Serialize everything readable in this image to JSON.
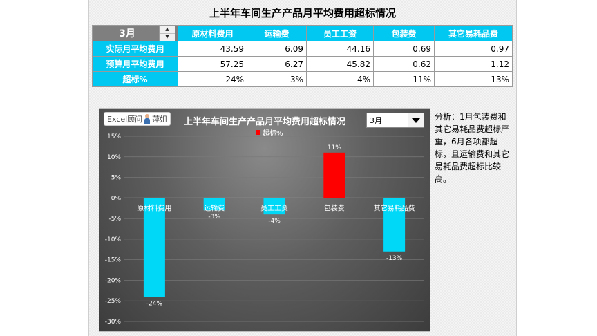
{
  "page": {
    "title": "上半年车间生产产品月平均费用超标情况"
  },
  "table": {
    "month": "3月",
    "headers": [
      "原材料费用",
      "运输费",
      "员工工资",
      "包装费",
      "其它易耗品费"
    ],
    "rows": [
      {
        "label": "实际月平均费用",
        "values": [
          "43.59",
          "6.09",
          "44.16",
          "0.69",
          "0.97"
        ]
      },
      {
        "label": "预算月平均费用",
        "values": [
          "57.25",
          "6.27",
          "45.82",
          "0.62",
          "1.12"
        ]
      },
      {
        "label": "超标%",
        "values": [
          "-24%",
          "-3%",
          "-4%",
          "11%",
          "-13%"
        ]
      }
    ]
  },
  "chart": {
    "badge_text": "Excel顾问",
    "badge_name": "萍姐",
    "dropdown_value": "3月"
  },
  "analysis": "分析：1月包装费和其它易耗品费超标严重，6月各项都超标，且运输费和其它易耗品费超标比较高。",
  "chart_data": {
    "type": "bar",
    "title": "上半年车间生产产品月平均费用超标情况",
    "categories": [
      "原材料费用",
      "运输费",
      "员工工资",
      "包装费",
      "其它易耗品费"
    ],
    "series": [
      {
        "name": "超标%",
        "values": [
          -24,
          -3,
          -4,
          11,
          -13
        ]
      }
    ],
    "data_labels": [
      "-24%",
      "-3%",
      "-4%",
      "11%",
      "-13%"
    ],
    "ylim": [
      -30,
      15
    ],
    "yticks": [
      15,
      10,
      5,
      0,
      -5,
      -10,
      -15,
      -20,
      -25,
      -30
    ],
    "ytick_labels": [
      "15%",
      "10%",
      "5%",
      "0%",
      "-5%",
      "-10%",
      "-15%",
      "-20%",
      "-25%",
      "-30%"
    ],
    "xlabel": "",
    "ylabel": "",
    "legend_position": "top-center",
    "grid": true,
    "colors": {
      "negative": "#00d8f8",
      "positive": "#ff0000"
    }
  }
}
